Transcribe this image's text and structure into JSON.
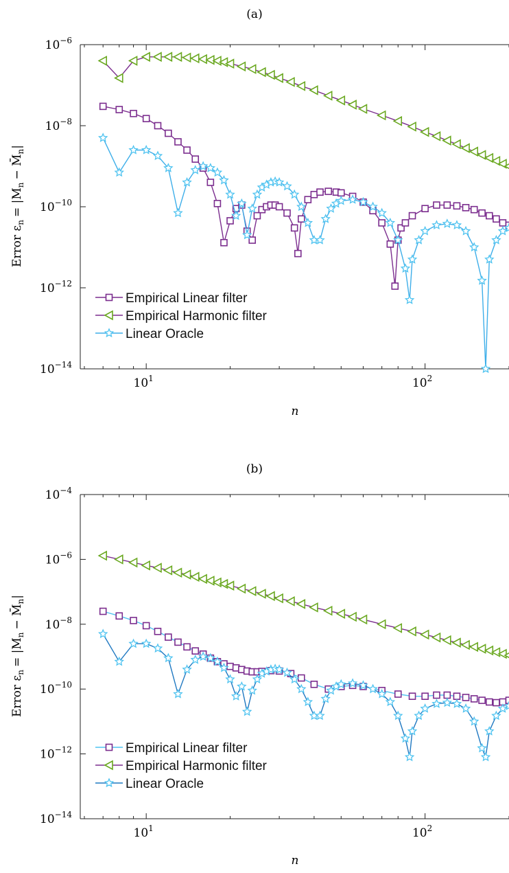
{
  "chart_data": [
    {
      "type": "line",
      "panel_label": "(a)",
      "xlabel": "n",
      "ylabel_main": "Error ε",
      "ylabel_sub": "n",
      "ylabel_rest": "= |M",
      "ylabel_sub2": "n",
      "ylabel_end": "− M̄",
      "ylabel_sub3": "n",
      "ylabel_close": "|",
      "x_scale": "log",
      "y_scale": "log",
      "xlim": [
        5.8,
        200
      ],
      "ylim": [
        1e-14,
        1e-06
      ],
      "x_ticks": [
        {
          "v": 10,
          "base": "10",
          "exp": "1"
        },
        {
          "v": 100,
          "base": "10",
          "exp": "2"
        }
      ],
      "y_ticks": [
        {
          "v": 1e-14,
          "base": "10",
          "exp": "−14"
        },
        {
          "v": 1e-12,
          "base": "10",
          "exp": "−12"
        },
        {
          "v": 1e-10,
          "base": "10",
          "exp": "−10"
        },
        {
          "v": 1e-08,
          "base": "10",
          "exp": "−8"
        },
        {
          "v": 1e-06,
          "base": "10",
          "exp": "−6"
        }
      ],
      "legend": {
        "placement": "bottom-left",
        "entries": [
          "Empirical Linear filter",
          "Empirical Harmonic filter",
          "Linear Oracle"
        ]
      },
      "series": [
        {
          "name": "Empirical Linear filter",
          "line_color": "#7b2d8e",
          "marker": "square",
          "marker_color": "#7b2d8e",
          "x": [
            7,
            8,
            9,
            10,
            11,
            12,
            13,
            14,
            15,
            16,
            17,
            18,
            19,
            20,
            21,
            22,
            23,
            24,
            25,
            26,
            27,
            28,
            29,
            30,
            32,
            34,
            35,
            36,
            38,
            40,
            42,
            45,
            48,
            50,
            55,
            60,
            65,
            70,
            75,
            78,
            80,
            82,
            85,
            90,
            100,
            110,
            120,
            130,
            140,
            150,
            160,
            170,
            180,
            190,
            200
          ],
          "y": [
            3e-08,
            2.5e-08,
            2e-08,
            1.5e-08,
            1e-08,
            6.5e-09,
            4e-09,
            2.5e-09,
            1.5e-09,
            9e-10,
            4e-10,
            1.2e-10,
            1.3e-11,
            4.5e-11,
            9e-11,
            1.1e-10,
            2.5e-11,
            1.5e-11,
            6e-11,
            8.5e-11,
            1e-10,
            1.1e-10,
            1.1e-10,
            1e-10,
            7e-11,
            3e-11,
            7e-12,
            5e-11,
            1.5e-10,
            2e-10,
            2.3e-10,
            2.4e-10,
            2.3e-10,
            2.2e-10,
            1.8e-10,
            1.3e-10,
            8e-11,
            4e-11,
            1.2e-11,
            1.1e-12,
            1.5e-11,
            3e-11,
            4e-11,
            6e-11,
            9e-11,
            1.1e-10,
            1.1e-10,
            1.05e-10,
            9.5e-11,
            8.5e-11,
            7e-11,
            6e-11,
            5e-11,
            4e-11,
            3.5e-11
          ]
        },
        {
          "name": "Empirical Harmonic filter",
          "line_color": "#7b2d8e",
          "marker": "triangle-left",
          "marker_color": "#6aa820",
          "x": [
            7,
            8,
            9,
            10,
            11,
            12,
            13,
            14,
            15,
            16,
            17,
            18,
            19,
            20,
            22,
            24,
            26,
            28,
            30,
            33,
            36,
            40,
            45,
            50,
            55,
            60,
            70,
            80,
            90,
            100,
            110,
            120,
            130,
            140,
            150,
            160,
            170,
            180,
            190,
            200
          ],
          "y": [
            4e-07,
            1.5e-07,
            4e-07,
            5e-07,
            5e-07,
            5e-07,
            5e-07,
            4.8e-07,
            4.6e-07,
            4.4e-07,
            4.2e-07,
            4e-07,
            3.7e-07,
            3.4e-07,
            2.9e-07,
            2.5e-07,
            2.1e-07,
            1.8e-07,
            1.5e-07,
            1.2e-07,
            9.5e-08,
            7.5e-08,
            5.5e-08,
            4.2e-08,
            3.3e-08,
            2.6e-08,
            1.8e-08,
            1.3e-08,
            9.5e-09,
            7e-09,
            5.5e-09,
            4.3e-09,
            3.5e-09,
            2.8e-09,
            2.3e-09,
            1.9e-09,
            1.6e-09,
            1.35e-09,
            1.15e-09,
            1e-09
          ]
        },
        {
          "name": "Linear Oracle",
          "line_color": "#3daee9",
          "marker": "star",
          "marker_color": "#4fc3f0",
          "x": [
            7,
            8,
            9,
            10,
            11,
            12,
            13,
            14,
            15,
            16,
            17,
            18,
            19,
            20,
            21,
            22,
            23,
            24,
            25,
            26,
            27,
            28,
            29,
            30,
            32,
            34,
            36,
            38,
            40,
            42,
            44,
            46,
            48,
            50,
            55,
            60,
            65,
            70,
            75,
            80,
            85,
            88,
            90,
            95,
            100,
            110,
            120,
            130,
            140,
            150,
            160,
            165,
            170,
            180,
            190,
            200
          ],
          "y": [
            5e-09,
            7e-10,
            2.5e-09,
            2.5e-09,
            1.8e-09,
            9e-10,
            7e-11,
            4e-10,
            8e-10,
            1e-09,
            9e-10,
            7e-10,
            4.5e-10,
            2e-10,
            6e-11,
            1.2e-10,
            2e-11,
            9e-11,
            2e-10,
            3e-10,
            3.5e-10,
            4e-10,
            4.2e-10,
            4e-10,
            3.2e-10,
            2e-10,
            1e-10,
            4e-11,
            1.5e-11,
            1.5e-11,
            5e-11,
            9e-11,
            1.2e-10,
            1.4e-10,
            1.5e-10,
            1.3e-10,
            1e-10,
            7e-11,
            4e-11,
            1.5e-11,
            3e-12,
            5e-13,
            5e-12,
            1.5e-11,
            2.5e-11,
            3.5e-11,
            3.8e-11,
            3.5e-11,
            2.5e-11,
            1e-11,
            1.5e-12,
            1e-14,
            5e-12,
            1.5e-11,
            2.5e-11,
            3e-11
          ]
        }
      ]
    },
    {
      "type": "line",
      "panel_label": "(b)",
      "xlabel": "n",
      "ylabel_main": "Error ε",
      "ylabel_sub": "n",
      "ylabel_rest": "= |M",
      "ylabel_sub2": "n",
      "ylabel_end": "− M̄",
      "ylabel_sub3": "n",
      "ylabel_close": "|",
      "x_scale": "log",
      "y_scale": "log",
      "xlim": [
        5.8,
        200
      ],
      "ylim": [
        1e-14,
        0.0001
      ],
      "x_ticks": [
        {
          "v": 10,
          "base": "10",
          "exp": "1"
        },
        {
          "v": 100,
          "base": "10",
          "exp": "2"
        }
      ],
      "y_ticks": [
        {
          "v": 1e-14,
          "base": "10",
          "exp": "−14"
        },
        {
          "v": 1e-12,
          "base": "10",
          "exp": "−12"
        },
        {
          "v": 1e-10,
          "base": "10",
          "exp": "−10"
        },
        {
          "v": 1e-08,
          "base": "10",
          "exp": "−8"
        },
        {
          "v": 1e-06,
          "base": "10",
          "exp": "−6"
        },
        {
          "v": 0.0001,
          "base": "10",
          "exp": "−4"
        }
      ],
      "legend": {
        "placement": "bottom-left",
        "entries": [
          "Empirical Linear filter",
          "Empirical Harmonic filter",
          "Linear Oracle"
        ]
      },
      "series": [
        {
          "name": "Empirical Linear filter",
          "line_color": "#4fc3f0",
          "marker": "square",
          "marker_color": "#7b2d8e",
          "x": [
            7,
            8,
            9,
            10,
            11,
            12,
            13,
            14,
            15,
            16,
            17,
            18,
            19,
            20,
            21,
            22,
            23,
            24,
            25,
            26,
            28,
            30,
            33,
            36,
            40,
            45,
            50,
            55,
            60,
            70,
            80,
            90,
            100,
            110,
            120,
            130,
            140,
            150,
            160,
            170,
            180,
            190,
            200
          ],
          "y": [
            2.5e-08,
            1.8e-08,
            1.3e-08,
            9e-09,
            6e-09,
            4e-09,
            2.8e-09,
            2e-09,
            1.5e-09,
            1.2e-09,
            9e-10,
            7e-10,
            6e-10,
            5e-10,
            4.5e-10,
            4e-10,
            3.6e-10,
            3.4e-10,
            3.4e-10,
            3.5e-10,
            3.7e-10,
            3.6e-10,
            3e-10,
            2.2e-10,
            1.4e-10,
            1e-10,
            1.2e-10,
            1.3e-10,
            1.2e-10,
            9e-11,
            7e-11,
            6e-11,
            6e-11,
            6.5e-11,
            6.5e-11,
            6e-11,
            5.5e-11,
            5e-11,
            4.5e-11,
            4e-11,
            3.8e-11,
            4e-11,
            4.5e-11
          ]
        },
        {
          "name": "Empirical Harmonic filter",
          "line_color": "#7b2d8e",
          "marker": "triangle-left",
          "marker_color": "#6aa820",
          "x": [
            7,
            8,
            9,
            10,
            11,
            12,
            13,
            14,
            15,
            16,
            17,
            18,
            19,
            20,
            22,
            24,
            26,
            28,
            30,
            33,
            36,
            40,
            45,
            50,
            55,
            60,
            70,
            80,
            90,
            100,
            110,
            120,
            130,
            140,
            150,
            160,
            170,
            180,
            190,
            200
          ],
          "y": [
            1.3e-06,
            1e-06,
            8e-07,
            6.5e-07,
            5.5e-07,
            4.6e-07,
            3.9e-07,
            3.4e-07,
            2.9e-07,
            2.5e-07,
            2.2e-07,
            1.95e-07,
            1.75e-07,
            1.55e-07,
            1.25e-07,
            1.05e-07,
            8.7e-08,
            7.4e-08,
            6.3e-08,
            5.1e-08,
            4.2e-08,
            3.3e-08,
            2.6e-08,
            2.1e-08,
            1.7e-08,
            1.4e-08,
            1e-08,
            7.6e-09,
            6e-09,
            4.8e-09,
            3.9e-09,
            3.2e-09,
            2.7e-09,
            2.3e-09,
            2e-09,
            1.75e-09,
            1.55e-09,
            1.37e-09,
            1.22e-09,
            1.1e-09
          ]
        },
        {
          "name": "Linear Oracle",
          "line_color": "#1f78c1",
          "marker": "star",
          "marker_color": "#4fc3f0",
          "x": [
            7,
            8,
            9,
            10,
            11,
            12,
            13,
            14,
            15,
            16,
            17,
            18,
            19,
            20,
            21,
            22,
            23,
            24,
            25,
            26,
            27,
            28,
            29,
            30,
            32,
            34,
            36,
            38,
            40,
            42,
            44,
            46,
            48,
            50,
            55,
            60,
            65,
            70,
            75,
            80,
            85,
            88,
            90,
            95,
            100,
            110,
            120,
            130,
            140,
            150,
            160,
            165,
            170,
            180,
            190,
            200
          ],
          "y": [
            5e-09,
            7e-10,
            2.5e-09,
            2.5e-09,
            1.8e-09,
            9e-10,
            7e-11,
            4e-10,
            8e-10,
            1e-09,
            9e-10,
            7e-10,
            4.5e-10,
            2e-10,
            6e-11,
            1.2e-10,
            2e-11,
            9e-11,
            2e-10,
            3e-10,
            3.5e-10,
            4e-10,
            4.2e-10,
            4e-10,
            3.2e-10,
            2e-10,
            1e-10,
            4e-11,
            1.5e-11,
            1.5e-11,
            5e-11,
            9e-11,
            1.2e-10,
            1.4e-10,
            1.5e-10,
            1.3e-10,
            1e-10,
            7e-11,
            4e-11,
            1.5e-11,
            3e-12,
            8e-13,
            5e-12,
            1.5e-11,
            2.5e-11,
            3.5e-11,
            3.8e-11,
            3.5e-11,
            2.5e-11,
            1e-11,
            1.5e-12,
            8e-13,
            5e-12,
            1.5e-11,
            2.5e-11,
            3e-11
          ]
        }
      ]
    }
  ]
}
